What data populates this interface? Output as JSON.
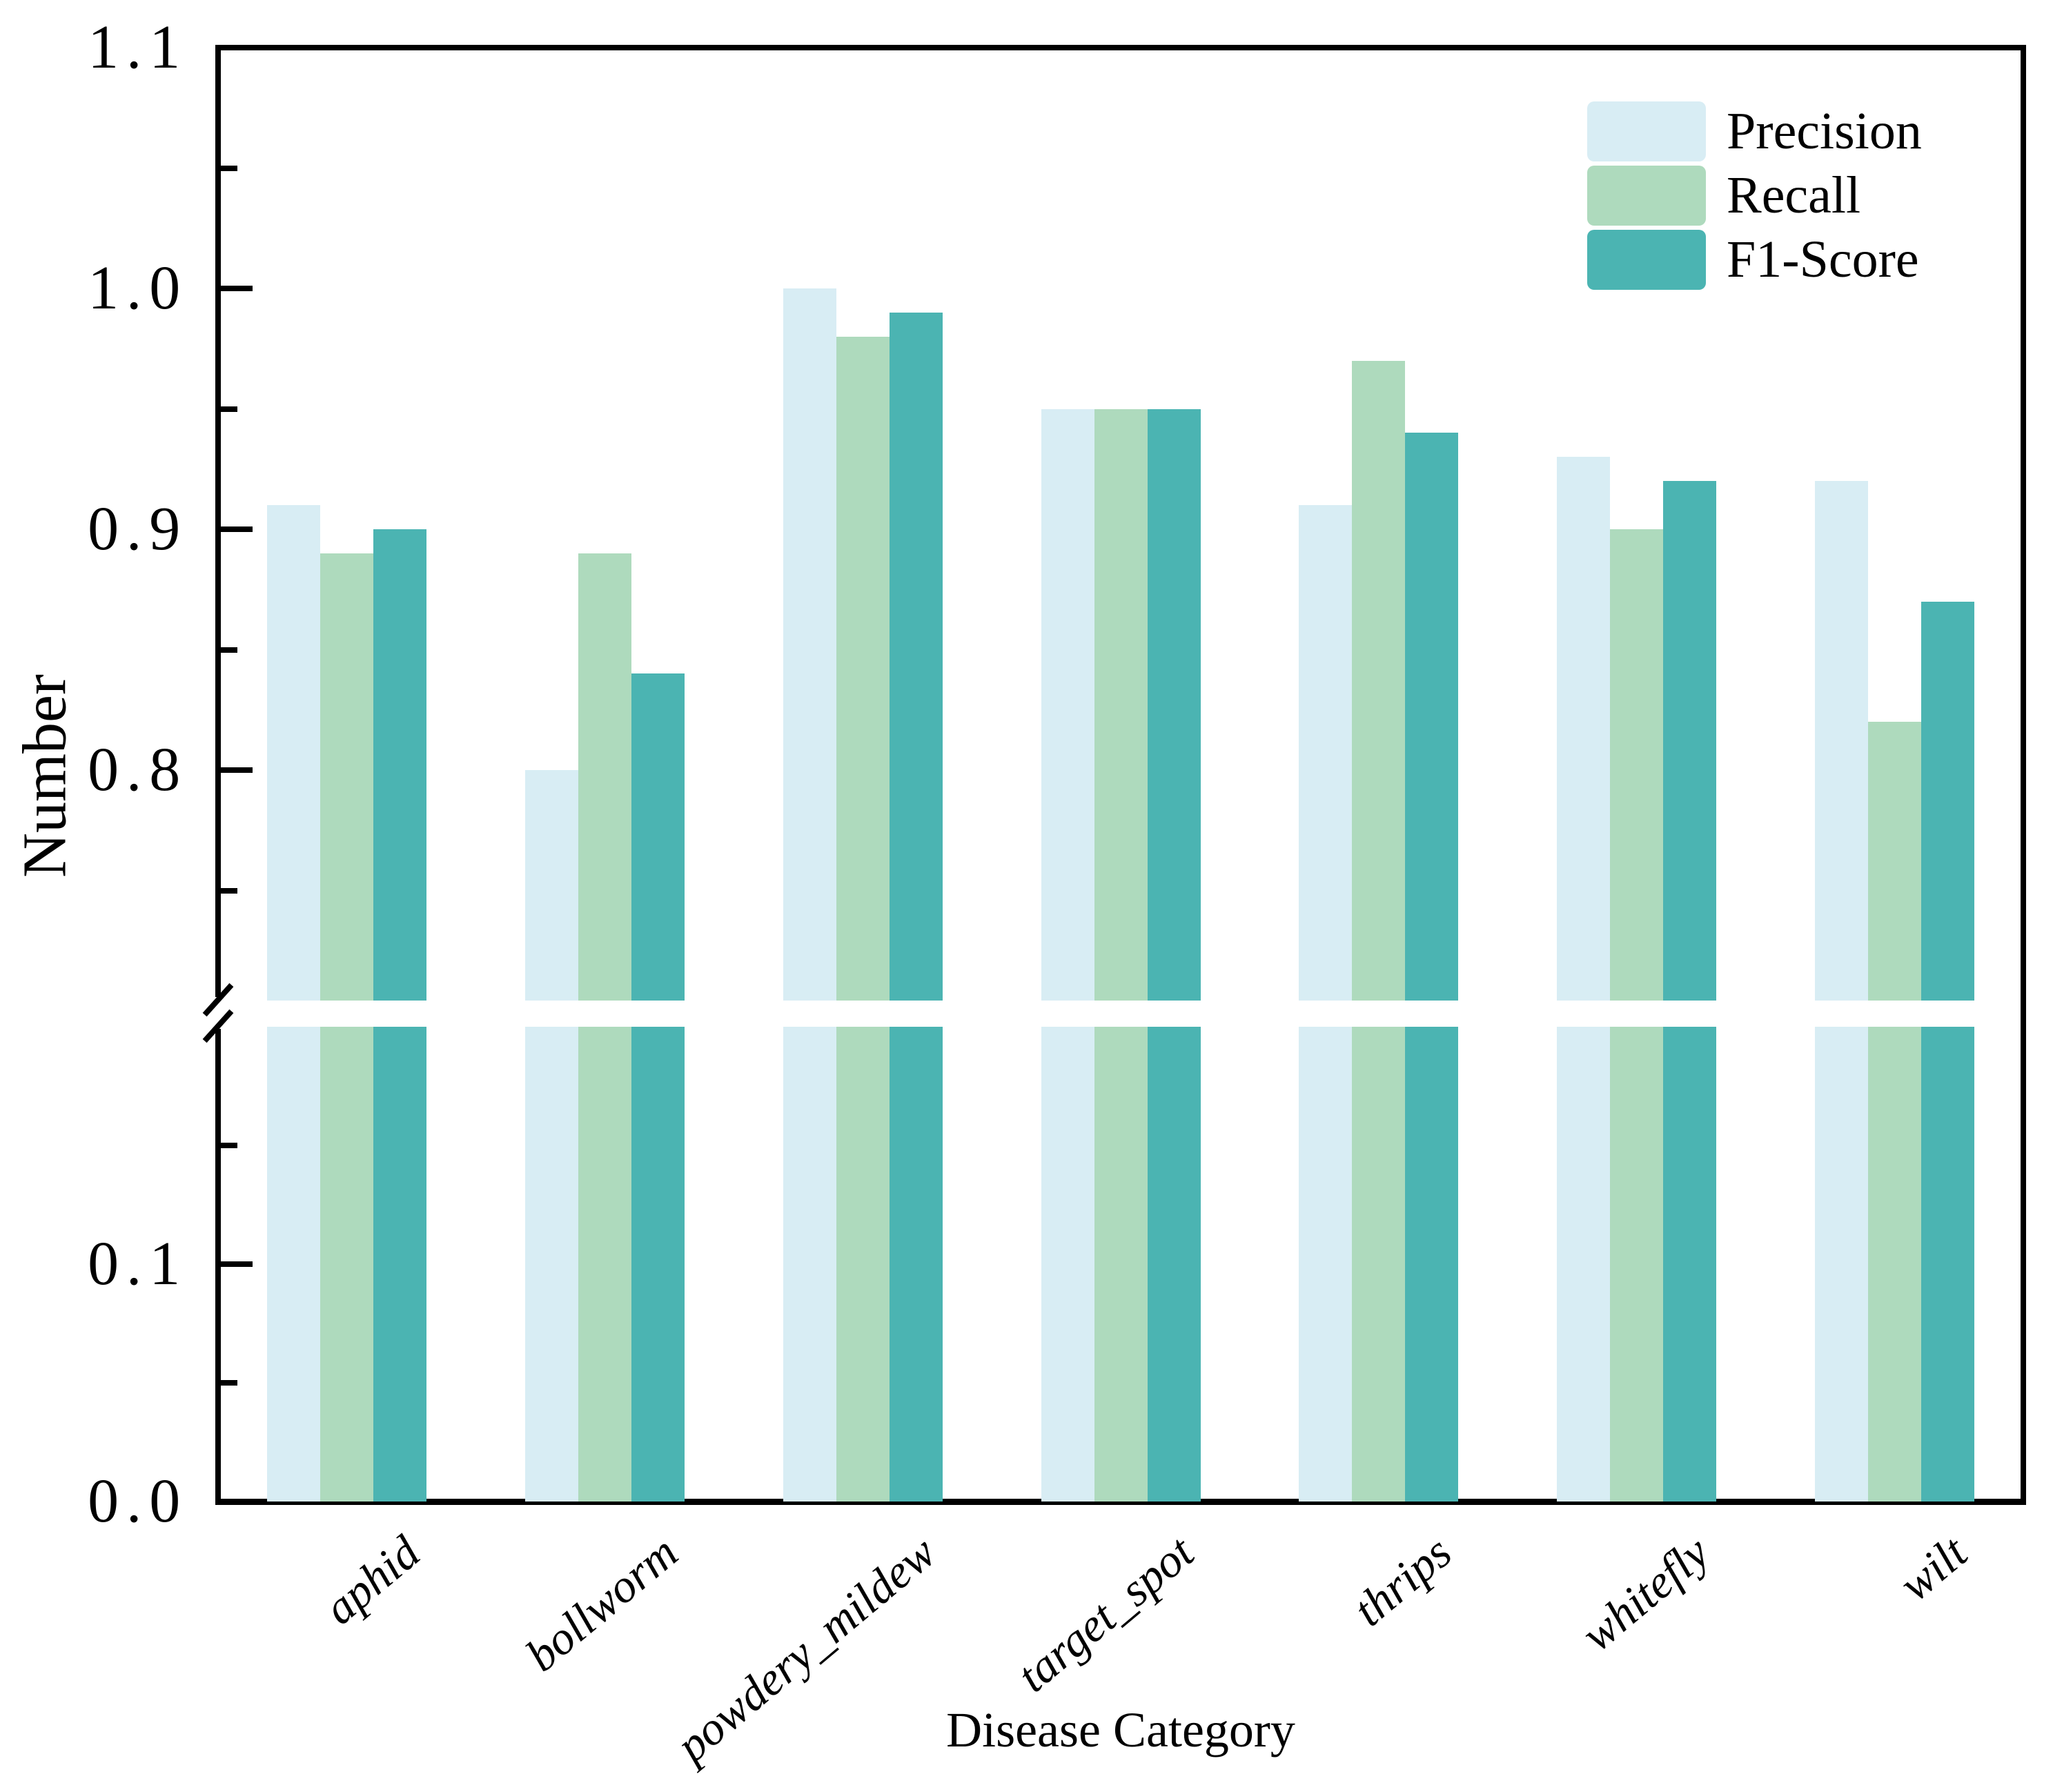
{
  "chart_data": {
    "type": "bar",
    "title": "",
    "xlabel": "Disease Category",
    "ylabel": "Number",
    "categories": [
      "aphid",
      "bollworm",
      "powdery_mildew",
      "target_spot",
      "thrips",
      "whitefly",
      "wilt"
    ],
    "series": [
      {
        "name": "Precision",
        "color": "#d8edf4",
        "values": [
          0.91,
          0.8,
          1.0,
          0.95,
          0.91,
          0.93,
          0.92
        ]
      },
      {
        "name": "Recall",
        "color": "#aedabd",
        "values": [
          0.89,
          0.89,
          0.98,
          0.95,
          0.97,
          0.9,
          0.82
        ]
      },
      {
        "name": "F1-Score",
        "color": "#4bb4b2",
        "values": [
          0.9,
          0.84,
          0.99,
          0.95,
          0.94,
          0.92,
          0.87
        ]
      }
    ],
    "legend_position": "upper right",
    "grid": false,
    "broken_y_axis": {
      "upper_range": [
        0.7,
        1.1
      ],
      "lower_range": [
        0.0,
        0.2
      ],
      "upper_ticks": [
        {
          "v": 1.1,
          "major": true,
          "label": "1.1",
          "edge": true
        },
        {
          "v": 1.05,
          "major": false
        },
        {
          "v": 1.0,
          "major": true,
          "label": "1.0"
        },
        {
          "v": 0.95,
          "major": false
        },
        {
          "v": 0.9,
          "major": true,
          "label": "0.9"
        },
        {
          "v": 0.85,
          "major": false
        },
        {
          "v": 0.8,
          "major": true,
          "label": "0.8"
        },
        {
          "v": 0.75,
          "major": false
        }
      ],
      "lower_ticks": [
        {
          "v": 0.15,
          "major": false
        },
        {
          "v": 0.1,
          "major": true,
          "label": "0.1"
        },
        {
          "v": 0.05,
          "major": false
        },
        {
          "v": 0.0,
          "major": true,
          "label": "0.0",
          "edge": true
        }
      ]
    },
    "axis_color": "#000000",
    "background_color": "#ffffff"
  }
}
